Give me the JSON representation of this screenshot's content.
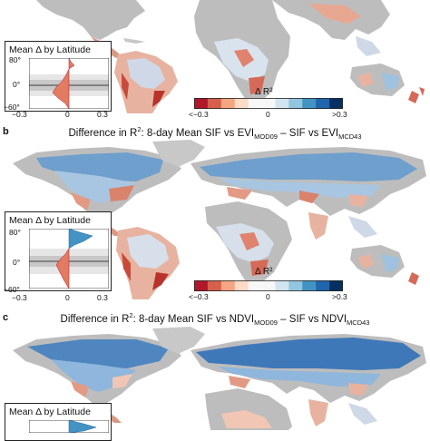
{
  "panel_a": {
    "inset_title": "Mean Δ by Latitude",
    "lat_ticks": [
      "80°",
      "0°",
      "−60°"
    ],
    "delta_ticks": [
      "−0.3",
      "0",
      "0.3"
    ],
    "colorbar_title": "Δ R²",
    "colorbar_ticks": [
      "<−0.3",
      "0",
      ">0.3"
    ]
  },
  "panel_b": {
    "letter": "b",
    "title_pre": "Difference in R",
    "title_sup": "2",
    "title_mid1": ": 8-day Mean SIF vs EVI",
    "title_sub1": "MOD09",
    "title_mid2": " – SIF vs EVI",
    "title_sub2": "MCD43",
    "inset_title": "Mean Δ by Latitude",
    "lat_ticks": [
      "80°",
      "0°",
      "−60°"
    ],
    "delta_ticks": [
      "−0.3",
      "0",
      "0.3"
    ],
    "colorbar_title": "Δ R²",
    "colorbar_ticks": [
      "<−0.3",
      "0",
      ">0.3"
    ]
  },
  "panel_c": {
    "letter": "c",
    "title_pre": "Difference in R",
    "title_sup": "2",
    "title_mid1": ": 8-day Mean SIF vs NDVI",
    "title_sub1": "MOD09",
    "title_mid2": " – SIF vs NDVI",
    "title_sub2": "MCD43",
    "inset_title": "Mean Δ by Latitude"
  },
  "colors": {
    "land_nodata": "#b4b4b4",
    "ocean": "#ffffff",
    "neg_strong": "#b2182b",
    "neg_mid": "#e27b62",
    "neg_light": "#f5cdb6",
    "neutral": "#f2f2f2",
    "pos_light": "#c6dbef",
    "pos_mid": "#6baed6",
    "pos_strong": "#08306b",
    "band_light": "#e6e6e6",
    "band_dark": "#c8c8c8"
  },
  "colorbar_bins": [
    "#b2182b",
    "#d6604d",
    "#f4a582",
    "#fddbc7",
    "#f7f7f7",
    "#f7f7f7",
    "#d1e5f0",
    "#92c5de",
    "#4393c3",
    "#2166ac",
    "#053061"
  ]
}
